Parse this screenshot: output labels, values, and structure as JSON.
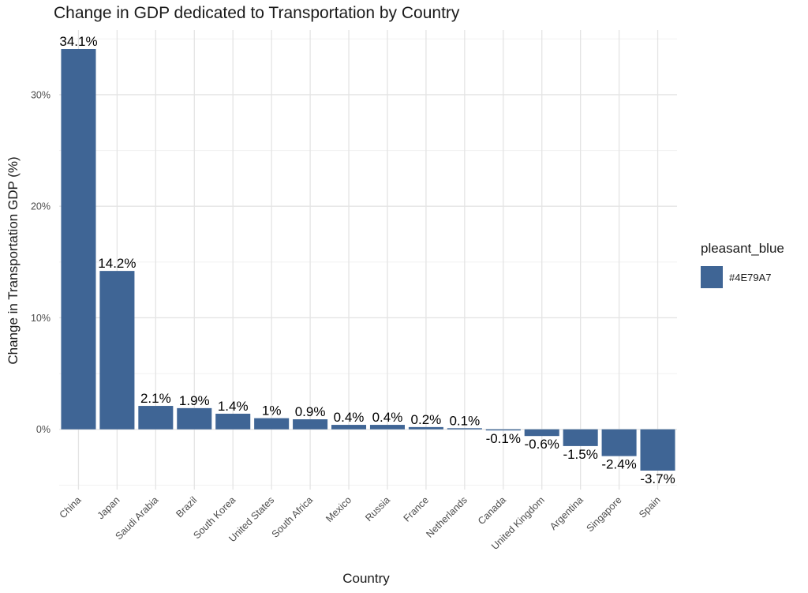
{
  "chart_data": {
    "type": "bar",
    "title": "Change in GDP dedicated to Transportation by Country",
    "xlabel": "Country",
    "ylabel": "Change in Transportation GDP (%)",
    "categories": [
      "China",
      "Japan",
      "Saudi Arabia",
      "Brazil",
      "South Korea",
      "United States",
      "South Africa",
      "Mexico",
      "Russia",
      "France",
      "Netherlands",
      "Canada",
      "United Kingdom",
      "Argentina",
      "Singapore",
      "Spain"
    ],
    "values": [
      34.1,
      14.2,
      2.1,
      1.9,
      1.4,
      1.0,
      0.9,
      0.4,
      0.4,
      0.2,
      0.1,
      -0.1,
      -0.6,
      -1.5,
      -2.4,
      -3.7
    ],
    "value_labels": [
      "34.1%",
      "14.2%",
      "2.1%",
      "1.9%",
      "1.4%",
      "1%",
      "0.9%",
      "0.4%",
      "0.4%",
      "0.2%",
      "0.1%",
      "-0.1%",
      "-0.6%",
      "-1.5%",
      "-2.4%",
      "-3.7%"
    ],
    "y_ticks": [
      0,
      10,
      20,
      30
    ],
    "y_tick_labels": [
      "0%",
      "10%",
      "20%",
      "30%"
    ],
    "ylim": [
      -5.4,
      35.8
    ],
    "grid": true,
    "legend": {
      "title": "pleasant_blue",
      "label": "#4E79A7",
      "position": "right"
    },
    "bar_color": "#3f6595"
  }
}
